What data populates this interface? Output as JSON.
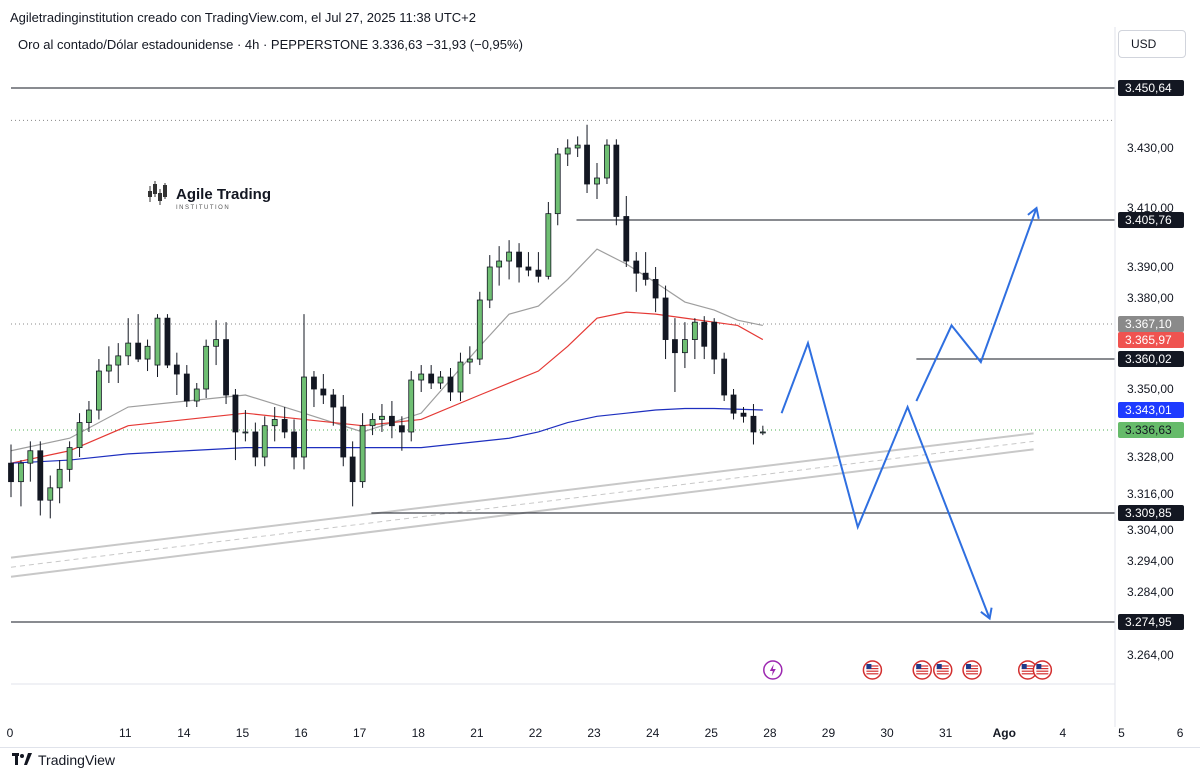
{
  "attribution": "Agiletradinginstitution creado con TradingView.com, el Jul 27, 2025 11:38 UTC+2",
  "footer": {
    "brand": "TradingView",
    "logo_icon": "tradingview-logo-icon"
  },
  "currency_button": "USD",
  "chart_data": {
    "type": "candlestick",
    "title": "Oro al contado/Dólar estadounidense · 4h · PEPPERSTONE",
    "price_header": {
      "last": "3.336,63",
      "change": "−31,93 (−0,95%)"
    },
    "watermark": {
      "name": "Agile Trading",
      "subtitle": "INSTITUTION"
    },
    "y_ticks": [
      "3.430,00",
      "3.410,00",
      "3.390,00",
      "3.380,00",
      "3.350,00",
      "3.328,00",
      "3.316,00",
      "3.304,00",
      "3.294,00",
      "3.284,00",
      "3.264,00"
    ],
    "x_ticks": [
      "0",
      "11",
      "14",
      "15",
      "16",
      "17",
      "18",
      "21",
      "22",
      "23",
      "24",
      "25",
      "28",
      "29",
      "30",
      "31",
      "Ago",
      "4",
      "5",
      "6"
    ],
    "price_labels": [
      {
        "label": "3.450,64",
        "price": 3450.64,
        "style": "dark"
      },
      {
        "label": "3.405,76",
        "price": 3405.76,
        "style": "dark"
      },
      {
        "label": "3.367,10",
        "price": 3367.1,
        "style": "gray"
      },
      {
        "label": "3.365,97",
        "price": 3365.97,
        "style": "red"
      },
      {
        "label": "3.360,02",
        "price": 3360.02,
        "style": "dark"
      },
      {
        "label": "3.343,01",
        "price": 3343.01,
        "style": "blue"
      },
      {
        "label": "3.336,63",
        "price": 3336.63,
        "style": "green"
      },
      {
        "label": "3.309,85",
        "price": 3309.85,
        "style": "dark"
      },
      {
        "label": "3.274,95",
        "price": 3274.95,
        "style": "dark"
      }
    ],
    "horizontal_levels": [
      {
        "price": 3450.64,
        "from_day": 9,
        "style": "solid"
      },
      {
        "price": 3405.76,
        "from_day": 18.65,
        "style": "solid"
      },
      {
        "price": 3360.02,
        "from_day": 24.45,
        "style": "solid"
      },
      {
        "price": 3309.85,
        "from_day": 15.15,
        "style": "solid"
      },
      {
        "price": 3274.95,
        "from_day": 9,
        "style": "solid"
      },
      {
        "price": 3439.5,
        "from_day": 9,
        "style": "dotted"
      },
      {
        "price": 3367.1,
        "from_day": 9,
        "style": "dotted"
      },
      {
        "price": 3336.63,
        "from_day": 9,
        "style": "dotted-green"
      }
    ],
    "channel": {
      "start": {
        "day": 9,
        "price": 3292
      },
      "end": {
        "day": 26.45,
        "price": 3333
      },
      "width": 8
    },
    "candles": [
      {
        "d": 9.0,
        "o": 3326,
        "h": 3332,
        "l": 3315,
        "c": 3320
      },
      {
        "d": 9.17,
        "o": 3320,
        "h": 3327,
        "l": 3312,
        "c": 3326
      },
      {
        "d": 9.33,
        "o": 3326,
        "h": 3333,
        "l": 3320,
        "c": 3330
      },
      {
        "d": 9.5,
        "o": 3330,
        "h": 3333,
        "l": 3309,
        "c": 3314
      },
      {
        "d": 9.67,
        "o": 3314,
        "h": 3322,
        "l": 3308,
        "c": 3318
      },
      {
        "d": 9.83,
        "o": 3318,
        "h": 3327,
        "l": 3313,
        "c": 3324
      },
      {
        "d": 10.0,
        "o": 3324,
        "h": 3333,
        "l": 3320,
        "c": 3331
      },
      {
        "d": 10.17,
        "o": 3331,
        "h": 3342,
        "l": 3328,
        "c": 3339
      },
      {
        "d": 10.33,
        "o": 3339,
        "h": 3346,
        "l": 3336,
        "c": 3343
      },
      {
        "d": 10.5,
        "o": 3343,
        "h": 3360,
        "l": 3340,
        "c": 3356
      },
      {
        "d": 10.67,
        "o": 3356,
        "h": 3364,
        "l": 3352,
        "c": 3358
      },
      {
        "d": 10.83,
        "o": 3358,
        "h": 3365,
        "l": 3352,
        "c": 3361
      },
      {
        "d": 11.0,
        "o": 3361,
        "h": 3370,
        "l": 3358,
        "c": 3365
      },
      {
        "d": 11.17,
        "o": 3365,
        "h": 3372,
        "l": 3359,
        "c": 3360
      },
      {
        "d": 11.33,
        "o": 3360,
        "h": 3366,
        "l": 3356,
        "c": 3364
      },
      {
        "d": 11.5,
        "o": 3358,
        "h": 3372,
        "l": 3354,
        "c": 3370
      },
      {
        "d": 11.67,
        "o": 3370,
        "h": 3372,
        "l": 3357,
        "c": 3358
      },
      {
        "d": 11.83,
        "o": 3358,
        "h": 3362,
        "l": 3348,
        "c": 3355
      },
      {
        "d": 12.0,
        "o": 3355,
        "h": 3358,
        "l": 3344,
        "c": 3346
      },
      {
        "d": 12.17,
        "o": 3346,
        "h": 3352,
        "l": 3344,
        "c": 3350
      },
      {
        "d": 12.33,
        "o": 3350,
        "h": 3366,
        "l": 3347,
        "c": 3364
      },
      {
        "d": 12.5,
        "o": 3364,
        "h": 3369,
        "l": 3358,
        "c": 3366
      },
      {
        "d": 12.67,
        "o": 3366,
        "h": 3368,
        "l": 3345,
        "c": 3348
      },
      {
        "d": 12.83,
        "o": 3348,
        "h": 3350,
        "l": 3327,
        "c": 3336
      },
      {
        "d": 13.0,
        "o": 3336,
        "h": 3343,
        "l": 3333,
        "c": 3336
      },
      {
        "d": 13.17,
        "o": 3336,
        "h": 3339,
        "l": 3325,
        "c": 3328
      },
      {
        "d": 13.33,
        "o": 3328,
        "h": 3341,
        "l": 3325,
        "c": 3338
      },
      {
        "d": 13.5,
        "o": 3338,
        "h": 3344,
        "l": 3333,
        "c": 3340
      },
      {
        "d": 13.67,
        "o": 3340,
        "h": 3344,
        "l": 3334,
        "c": 3336
      },
      {
        "d": 13.83,
        "o": 3336,
        "h": 3340,
        "l": 3324,
        "c": 3328
      },
      {
        "d": 14.0,
        "o": 3328,
        "h": 3372,
        "l": 3324,
        "c": 3354
      },
      {
        "d": 14.17,
        "o": 3354,
        "h": 3356,
        "l": 3344,
        "c": 3350
      },
      {
        "d": 14.33,
        "o": 3350,
        "h": 3355,
        "l": 3345,
        "c": 3348
      },
      {
        "d": 14.5,
        "o": 3348,
        "h": 3350,
        "l": 3338,
        "c": 3344
      },
      {
        "d": 14.67,
        "o": 3344,
        "h": 3348,
        "l": 3325,
        "c": 3328
      },
      {
        "d": 14.83,
        "o": 3328,
        "h": 3333,
        "l": 3312,
        "c": 3320
      },
      {
        "d": 15.0,
        "o": 3320,
        "h": 3342,
        "l": 3318,
        "c": 3338
      },
      {
        "d": 15.17,
        "o": 3338,
        "h": 3342,
        "l": 3335,
        "c": 3340
      },
      {
        "d": 15.33,
        "o": 3340,
        "h": 3345,
        "l": 3336,
        "c": 3341
      },
      {
        "d": 15.5,
        "o": 3341,
        "h": 3346,
        "l": 3334,
        "c": 3338
      },
      {
        "d": 15.67,
        "o": 3338,
        "h": 3341,
        "l": 3330,
        "c": 3336
      },
      {
        "d": 15.83,
        "o": 3336,
        "h": 3356,
        "l": 3333,
        "c": 3353
      },
      {
        "d": 16.0,
        "o": 3353,
        "h": 3358,
        "l": 3349,
        "c": 3355
      },
      {
        "d": 16.17,
        "o": 3355,
        "h": 3358,
        "l": 3350,
        "c": 3352
      },
      {
        "d": 16.33,
        "o": 3352,
        "h": 3356,
        "l": 3350,
        "c": 3354
      },
      {
        "d": 16.5,
        "o": 3354,
        "h": 3357,
        "l": 3346,
        "c": 3349
      },
      {
        "d": 16.67,
        "o": 3349,
        "h": 3362,
        "l": 3346,
        "c": 3359
      },
      {
        "d": 16.83,
        "o": 3359,
        "h": 3364,
        "l": 3355,
        "c": 3360
      },
      {
        "d": 17.0,
        "o": 3360,
        "h": 3382,
        "l": 3358,
        "c": 3379
      },
      {
        "d": 17.17,
        "o": 3379,
        "h": 3394,
        "l": 3375,
        "c": 3390
      },
      {
        "d": 17.33,
        "o": 3390,
        "h": 3397,
        "l": 3384,
        "c": 3392
      },
      {
        "d": 17.5,
        "o": 3392,
        "h": 3399,
        "l": 3386,
        "c": 3395
      },
      {
        "d": 17.67,
        "o": 3395,
        "h": 3398,
        "l": 3385,
        "c": 3390
      },
      {
        "d": 17.83,
        "o": 3390,
        "h": 3395,
        "l": 3387,
        "c": 3389
      },
      {
        "d": 18.0,
        "o": 3389,
        "h": 3395,
        "l": 3385,
        "c": 3387
      },
      {
        "d": 18.17,
        "o": 3387,
        "h": 3412,
        "l": 3386,
        "c": 3408
      },
      {
        "d": 18.33,
        "o": 3408,
        "h": 3430,
        "l": 3404,
        "c": 3428
      },
      {
        "d": 18.5,
        "o": 3428,
        "h": 3433,
        "l": 3424,
        "c": 3430
      },
      {
        "d": 18.67,
        "o": 3430,
        "h": 3434,
        "l": 3427,
        "c": 3431
      },
      {
        "d": 18.83,
        "o": 3431,
        "h": 3438,
        "l": 3415,
        "c": 3418
      },
      {
        "d": 19.0,
        "o": 3418,
        "h": 3425,
        "l": 3413,
        "c": 3420
      },
      {
        "d": 19.17,
        "o": 3420,
        "h": 3433,
        "l": 3418,
        "c": 3431
      },
      {
        "d": 19.33,
        "o": 3431,
        "h": 3433,
        "l": 3404,
        "c": 3407
      },
      {
        "d": 19.5,
        "o": 3407,
        "h": 3414,
        "l": 3390,
        "c": 3392
      },
      {
        "d": 19.67,
        "o": 3392,
        "h": 3395,
        "l": 3382,
        "c": 3388
      },
      {
        "d": 19.83,
        "o": 3388,
        "h": 3395,
        "l": 3384,
        "c": 3386
      },
      {
        "d": 20.0,
        "o": 3386,
        "h": 3390,
        "l": 3373,
        "c": 3380
      },
      {
        "d": 20.17,
        "o": 3380,
        "h": 3384,
        "l": 3360,
        "c": 3366
      },
      {
        "d": 20.33,
        "o": 3366,
        "h": 3370,
        "l": 3349,
        "c": 3362
      },
      {
        "d": 20.5,
        "o": 3362,
        "h": 3368,
        "l": 3357,
        "c": 3366
      },
      {
        "d": 20.67,
        "o": 3366,
        "h": 3370,
        "l": 3360,
        "c": 3368
      },
      {
        "d": 20.83,
        "o": 3368,
        "h": 3371,
        "l": 3360,
        "c": 3364
      },
      {
        "d": 21.0,
        "o": 3368,
        "h": 3370,
        "l": 3355,
        "c": 3360
      },
      {
        "d": 21.17,
        "o": 3360,
        "h": 3362,
        "l": 3346,
        "c": 3348
      },
      {
        "d": 21.33,
        "o": 3348,
        "h": 3350,
        "l": 3340,
        "c": 3342
      },
      {
        "d": 21.5,
        "o": 3342,
        "h": 3344,
        "l": 3339,
        "c": 3341
      },
      {
        "d": 21.67,
        "o": 3341,
        "h": 3345,
        "l": 3332,
        "c": 3336
      },
      {
        "d": 21.83,
        "o": 3336,
        "h": 3338,
        "l": 3335,
        "c": 3336
      }
    ],
    "moving_averages": [
      {
        "color": "#9e9e9e",
        "points": [
          [
            9,
            3330
          ],
          [
            10,
            3334
          ],
          [
            11,
            3344
          ],
          [
            12,
            3346
          ],
          [
            13,
            3348
          ],
          [
            14,
            3342
          ],
          [
            15,
            3336
          ],
          [
            16,
            3342
          ],
          [
            17,
            3364
          ],
          [
            17.5,
            3372
          ],
          [
            18,
            3376
          ],
          [
            18.5,
            3386
          ],
          [
            19,
            3396
          ],
          [
            19.5,
            3391
          ],
          [
            20,
            3385
          ],
          [
            20.5,
            3378
          ],
          [
            21,
            3374
          ],
          [
            21.4,
            3369
          ],
          [
            21.83,
            3367
          ]
        ]
      },
      {
        "color": "#e53935",
        "points": [
          [
            9,
            3326
          ],
          [
            10,
            3330
          ],
          [
            11,
            3338
          ],
          [
            12,
            3340
          ],
          [
            13,
            3342
          ],
          [
            14,
            3340
          ],
          [
            15,
            3338
          ],
          [
            16,
            3340
          ],
          [
            17,
            3348
          ],
          [
            17.5,
            3352
          ],
          [
            18,
            3356
          ],
          [
            18.5,
            3364
          ],
          [
            19,
            3370
          ],
          [
            19.5,
            3373
          ],
          [
            20,
            3372
          ],
          [
            20.5,
            3370
          ],
          [
            21,
            3368
          ],
          [
            21.4,
            3367
          ],
          [
            21.83,
            3366
          ]
        ]
      },
      {
        "color": "#1e2fbf",
        "points": [
          [
            9,
            3326
          ],
          [
            10,
            3327
          ],
          [
            11,
            3329
          ],
          [
            12,
            3330
          ],
          [
            13,
            3331
          ],
          [
            14,
            3331
          ],
          [
            15,
            3331
          ],
          [
            16,
            3331
          ],
          [
            17,
            3333
          ],
          [
            17.5,
            3334
          ],
          [
            18,
            3336
          ],
          [
            18.5,
            3339
          ],
          [
            19,
            3341
          ],
          [
            19.5,
            3342
          ],
          [
            20,
            3343
          ],
          [
            20.5,
            3343.5
          ],
          [
            21,
            3343.5
          ],
          [
            21.83,
            3343
          ]
        ]
      }
    ],
    "projection_paths": [
      {
        "color": "#2f6fe0",
        "points": [
          [
            22.15,
            3342
          ],
          [
            22.6,
            3365
          ],
          [
            23.45,
            3305
          ],
          [
            24.3,
            3344
          ],
          [
            25.7,
            3276
          ]
        ],
        "arrow": "end"
      },
      {
        "color": "#2f6fe0",
        "points": [
          [
            24.45,
            3346
          ],
          [
            25.05,
            3367
          ],
          [
            25.55,
            3359
          ],
          [
            26.5,
            3410
          ]
        ],
        "arrow": "end"
      }
    ],
    "event_icons": [
      {
        "day": 22.0,
        "icon": "lightning-icon",
        "color": "#9c27b0"
      },
      {
        "day": 23.7,
        "icon": "us-flag-icon",
        "color": "#d32f2f"
      },
      {
        "day": 24.55,
        "icon": "us-flag-icon",
        "color": "#d32f2f"
      },
      {
        "day": 24.9,
        "icon": "us-flag-icon",
        "color": "#d32f2f"
      },
      {
        "day": 25.4,
        "icon": "us-flag-icon",
        "color": "#d32f2f"
      },
      {
        "day": 26.35,
        "icon": "us-flag-icon",
        "color": "#d32f2f"
      },
      {
        "day": 26.6,
        "icon": "us-flag-icon",
        "color": "#d32f2f"
      }
    ],
    "colors": {
      "up": "#6fbf73",
      "down": "#131722",
      "axis_text": "#131722",
      "grid": "#e0e3eb"
    }
  }
}
